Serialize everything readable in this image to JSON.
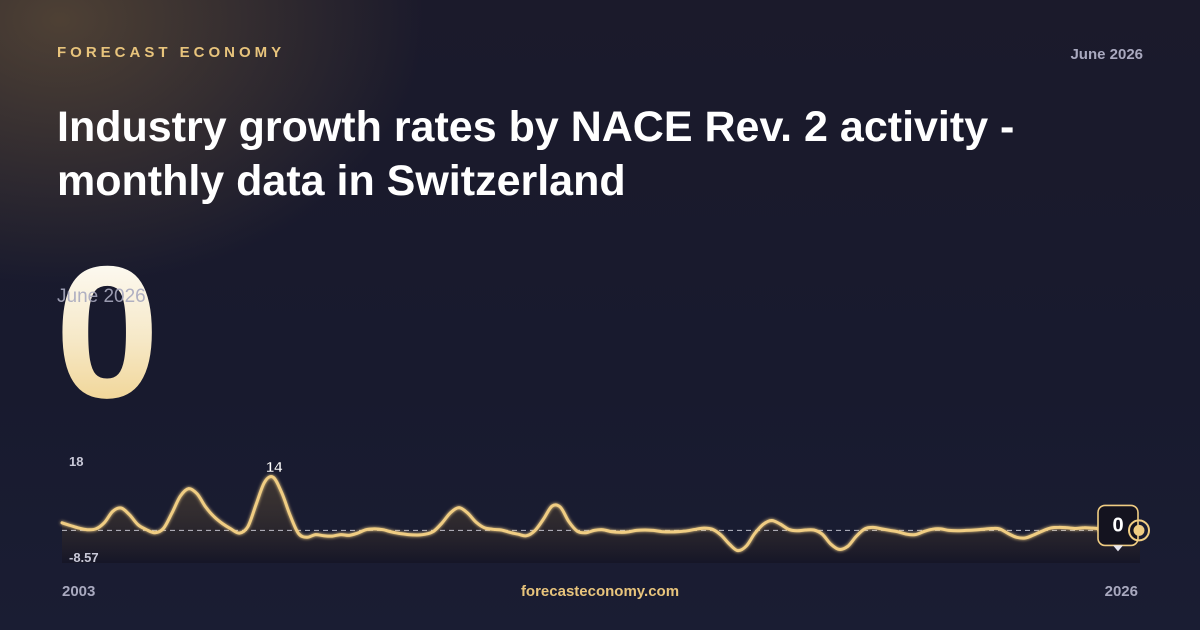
{
  "brand": "FORECAST ECONOMY",
  "date": "June 2026",
  "title": "Industry growth rates by NACE Rev. 2 activity - monthly data in Switzerland",
  "headline": {
    "value": "0",
    "date": "June 2026"
  },
  "footer": {
    "start_year": "2003",
    "end_year": "2026",
    "site": "forecasteconomy.com"
  },
  "colors": {
    "accent": "#e8c47c",
    "line": "#f0cd83",
    "muted": "#a9a9bf"
  },
  "chart_data": {
    "type": "line",
    "x_start": "2003",
    "x_end": "2026",
    "ylim": [
      -8.57,
      18
    ],
    "y_tick_labels": [
      "18",
      "-8.57"
    ],
    "peak_label": "14",
    "peak_value": 14,
    "last_label": "0",
    "last_value": 0,
    "baseline": 0,
    "values": [
      2.0,
      1.3,
      0.6,
      0.2,
      0.4,
      2.0,
      5.0,
      5.9,
      4.1,
      1.5,
      0.2,
      -0.6,
      0.5,
      4.5,
      9.0,
      11.0,
      9.6,
      6.2,
      3.6,
      1.8,
      0.4,
      -0.7,
      1.0,
      7.0,
      12.8,
      14.0,
      10.0,
      4.0,
      -0.8,
      -1.8,
      -1.1,
      -1.4,
      -1.5,
      -1.1,
      -1.3,
      -0.7,
      0.2,
      0.4,
      0.2,
      -0.4,
      -0.8,
      -1.1,
      -1.2,
      -1.0,
      -0.2,
      2.0,
      4.7,
      6.0,
      4.6,
      2.2,
      0.7,
      0.3,
      0.1,
      -0.5,
      -1.0,
      -1.4,
      0.0,
      3.0,
      6.4,
      6.1,
      2.3,
      -0.2,
      -0.6,
      0.0,
      0.2,
      -0.3,
      -0.5,
      -0.4,
      0.0,
      0.1,
      0.0,
      -0.3,
      -0.4,
      -0.3,
      -0.1,
      0.3,
      0.6,
      0.3,
      -1.2,
      -3.6,
      -5.3,
      -4.1,
      -0.8,
      1.6,
      2.6,
      1.7,
      0.3,
      -0.1,
      0.1,
      0.1,
      -1.0,
      -3.6,
      -5.0,
      -4.2,
      -1.6,
      0.4,
      0.8,
      0.4,
      0.0,
      -0.4,
      -1.0,
      -1.1,
      -0.3,
      0.3,
      0.4,
      0.0,
      -0.1,
      0.0,
      0.1,
      0.3,
      0.5,
      0.4,
      -0.8,
      -1.8,
      -2.0,
      -1.2,
      -0.2,
      0.6,
      0.8,
      0.7,
      0.5,
      0.7,
      0.6,
      0.4,
      0.3,
      0.0
    ]
  }
}
